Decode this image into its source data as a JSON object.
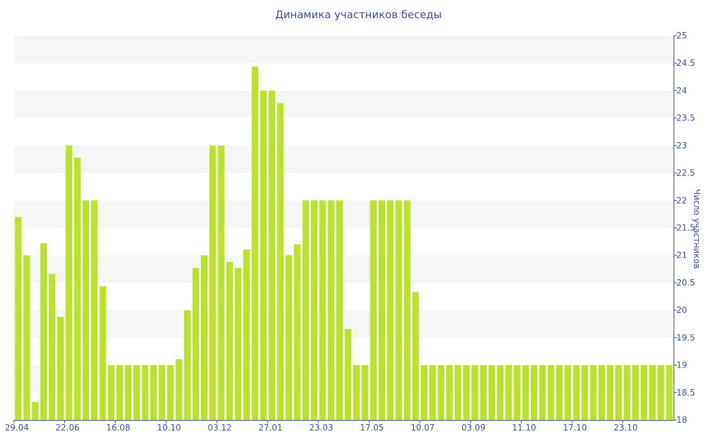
{
  "chart_data": {
    "type": "bar",
    "title": "Динамика участников беседы",
    "xlabel": "",
    "ylabel": "Число участников",
    "ylim": [
      18,
      25
    ],
    "y_ticks": [
      "18",
      "18.5",
      "19",
      "19.5",
      "20",
      "20.5",
      "21",
      "21.5",
      "22",
      "22.5",
      "23",
      "23.5",
      "24",
      "24.5",
      "25"
    ],
    "x_tick_labels": [
      "29.04",
      "22.06",
      "16.08",
      "10.10",
      "03.12",
      "27.01",
      "23.03",
      "17.05",
      "10.07",
      "03.09",
      "11.10",
      "17.10",
      "23.10"
    ],
    "x_tick_bar_index": [
      0,
      6,
      12,
      18,
      24,
      30,
      36,
      42,
      48,
      54,
      60,
      66,
      72
    ],
    "grid": "horizontal bands",
    "legend": "none",
    "bar_color": "#bde12f",
    "values": [
      21.7,
      21.0,
      18.33,
      21.22,
      20.66,
      19.88,
      23.0,
      22.78,
      22.0,
      22.0,
      20.44,
      19.0,
      19.0,
      19.0,
      19.0,
      19.0,
      19.0,
      19.0,
      19.0,
      19.11,
      20.0,
      20.77,
      21.0,
      23.0,
      23.0,
      20.88,
      20.77,
      21.11,
      24.44,
      24.0,
      24.0,
      23.77,
      21.0,
      21.2,
      22.0,
      22.0,
      22.0,
      22.0,
      22.0,
      19.66,
      19.0,
      19.0,
      22.0,
      22.0,
      22.0,
      22.0,
      22.0,
      20.33,
      19.0,
      19.0,
      19.0,
      19.0,
      19.0,
      19.0,
      19.0,
      19.0,
      19.0,
      19.0,
      19.0,
      19.0,
      19.0,
      19.0,
      19.0,
      19.0,
      19.0,
      19.0,
      19.0,
      19.0,
      19.0,
      19.0,
      19.0,
      19.0,
      19.0,
      19.0,
      19.0,
      19.0,
      19.0,
      19.0
    ]
  }
}
